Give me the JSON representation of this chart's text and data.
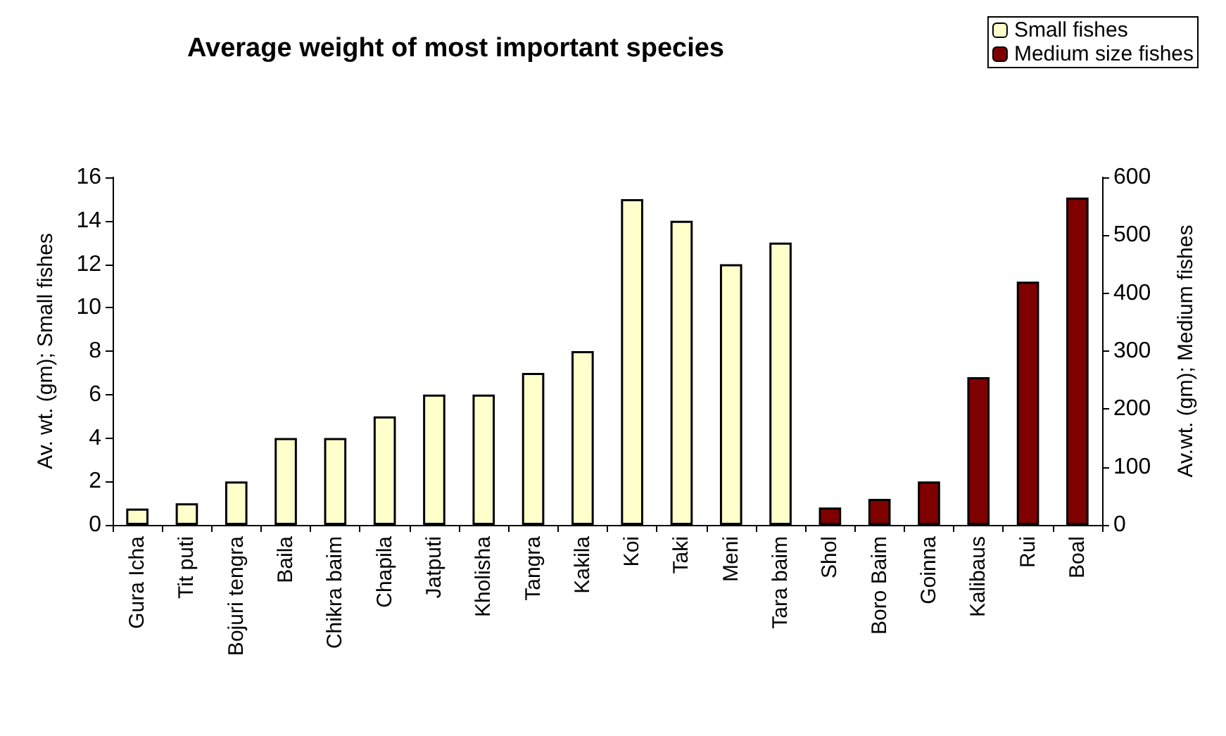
{
  "chart_data": {
    "type": "bar",
    "title": "Average weight of most important species",
    "ylabel": "Av. wt. (gm); Small fishes",
    "y2label": "Av.wt. (gm); Medium fishes",
    "categories": [
      "Gura Icha",
      "Tit puti",
      "Bojuri tengra",
      "Baila",
      "Chikra baim",
      "Chapila",
      "Jatputi",
      "Kholisha",
      "Tangra",
      "Kakila",
      "Koi",
      "Taki",
      "Meni",
      "Tara baim",
      "Shol",
      "Boro Baim",
      "Goinna",
      "Kalibaus",
      "Rui",
      "Boal"
    ],
    "series": [
      {
        "name": "Small fishes",
        "color": "#ffffcc",
        "values": [
          0.75,
          1,
          2,
          4,
          4,
          5,
          6,
          6,
          7,
          8,
          15,
          14,
          12,
          13,
          null,
          null,
          null,
          null,
          null,
          null
        ]
      },
      {
        "name": "Medium size fishes",
        "color": "#800000",
        "axis": "y2",
        "values": [
          null,
          null,
          null,
          null,
          null,
          null,
          null,
          null,
          null,
          null,
          null,
          null,
          null,
          null,
          30,
          45,
          75,
          255,
          420,
          565
        ]
      }
    ],
    "ylim": [
      0,
      16
    ],
    "yticks": [
      0,
      2,
      4,
      6,
      8,
      10,
      12,
      14,
      16
    ],
    "y2lim": [
      0,
      600
    ],
    "y2ticks": [
      0,
      100,
      200,
      300,
      400,
      500,
      600
    ],
    "grid": false,
    "legend": "top right"
  }
}
